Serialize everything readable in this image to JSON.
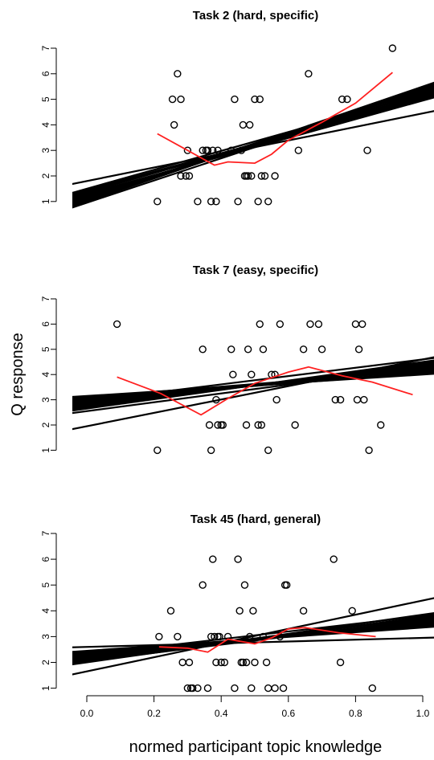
{
  "ylabel": "Q response",
  "xlabel": "normed participant topic knowledge",
  "chart_data": [
    {
      "type": "scatter",
      "title": "Task 2 (hard, specific)",
      "xlim": [
        0,
        1
      ],
      "ylim": [
        1,
        7
      ],
      "yticks": [
        1,
        2,
        3,
        4,
        5,
        6,
        7
      ],
      "points": [
        [
          0.21,
          1
        ],
        [
          0.255,
          5
        ],
        [
          0.26,
          4
        ],
        [
          0.27,
          6
        ],
        [
          0.28,
          5
        ],
        [
          0.28,
          2
        ],
        [
          0.295,
          2
        ],
        [
          0.3,
          3
        ],
        [
          0.305,
          2
        ],
        [
          0.33,
          1
        ],
        [
          0.345,
          3
        ],
        [
          0.355,
          3
        ],
        [
          0.36,
          3
        ],
        [
          0.37,
          1
        ],
        [
          0.375,
          3
        ],
        [
          0.385,
          1
        ],
        [
          0.39,
          3
        ],
        [
          0.43,
          3
        ],
        [
          0.44,
          5
        ],
        [
          0.45,
          1
        ],
        [
          0.46,
          3
        ],
        [
          0.465,
          4
        ],
        [
          0.47,
          2
        ],
        [
          0.475,
          2
        ],
        [
          0.48,
          2
        ],
        [
          0.485,
          4
        ],
        [
          0.49,
          2
        ],
        [
          0.5,
          5
        ],
        [
          0.51,
          1
        ],
        [
          0.515,
          5
        ],
        [
          0.52,
          2
        ],
        [
          0.53,
          2
        ],
        [
          0.54,
          1
        ],
        [
          0.56,
          2
        ],
        [
          0.63,
          3
        ],
        [
          0.66,
          6
        ],
        [
          0.76,
          5
        ],
        [
          0.775,
          5
        ],
        [
          0.835,
          3
        ],
        [
          0.91,
          7
        ]
      ],
      "lines": [
        [
          [
            0,
            1.35
          ],
          [
            1,
            5.15
          ]
        ],
        [
          [
            0,
            1.2
          ],
          [
            1,
            5.25
          ]
        ],
        [
          [
            0,
            1.1
          ],
          [
            1,
            5.35
          ]
        ],
        [
          [
            0,
            1.25
          ],
          [
            1,
            5.1
          ]
        ],
        [
          [
            0,
            1.4
          ],
          [
            1,
            5.0
          ]
        ],
        [
          [
            0,
            1.05
          ],
          [
            1,
            5.45
          ]
        ],
        [
          [
            0,
            1.3
          ],
          [
            1,
            4.95
          ]
        ],
        [
          [
            0,
            1.45
          ],
          [
            1,
            5.05
          ]
        ],
        [
          [
            0,
            1.15
          ],
          [
            1,
            5.4
          ]
        ],
        [
          [
            0,
            0.95
          ],
          [
            1,
            5.3
          ]
        ],
        [
          [
            0,
            1.5
          ],
          [
            1,
            5.2
          ]
        ],
        [
          [
            0,
            1.0
          ],
          [
            1,
            5.5
          ]
        ],
        [
          [
            0,
            1.8
          ],
          [
            1,
            4.45
          ]
        ]
      ],
      "smooth": [
        [
          0.21,
          3.65
        ],
        [
          0.3,
          3.0
        ],
        [
          0.38,
          2.42
        ],
        [
          0.42,
          2.55
        ],
        [
          0.5,
          2.5
        ],
        [
          0.55,
          2.85
        ],
        [
          0.6,
          3.4
        ],
        [
          0.7,
          4.1
        ],
        [
          0.8,
          4.85
        ],
        [
          0.91,
          6.05
        ]
      ]
    },
    {
      "type": "scatter",
      "title": "Task 7 (easy, specific)",
      "xlim": [
        0,
        1
      ],
      "ylim": [
        1,
        7
      ],
      "yticks": [
        1,
        2,
        3,
        4,
        5,
        6,
        7
      ],
      "points": [
        [
          0.09,
          6
        ],
        [
          0.21,
          1
        ],
        [
          0.345,
          5
        ],
        [
          0.365,
          2
        ],
        [
          0.37,
          1
        ],
        [
          0.385,
          3
        ],
        [
          0.39,
          2
        ],
        [
          0.4,
          2
        ],
        [
          0.405,
          2
        ],
        [
          0.43,
          5
        ],
        [
          0.435,
          4
        ],
        [
          0.475,
          2
        ],
        [
          0.48,
          5
        ],
        [
          0.49,
          4
        ],
        [
          0.51,
          2
        ],
        [
          0.515,
          6
        ],
        [
          0.52,
          2
        ],
        [
          0.525,
          5
        ],
        [
          0.54,
          1
        ],
        [
          0.55,
          4
        ],
        [
          0.56,
          4
        ],
        [
          0.565,
          3
        ],
        [
          0.575,
          6
        ],
        [
          0.62,
          2
        ],
        [
          0.645,
          5
        ],
        [
          0.665,
          6
        ],
        [
          0.69,
          6
        ],
        [
          0.7,
          5
        ],
        [
          0.74,
          3
        ],
        [
          0.755,
          3
        ],
        [
          0.8,
          6
        ],
        [
          0.805,
          3
        ],
        [
          0.81,
          5
        ],
        [
          0.82,
          6
        ],
        [
          0.825,
          3
        ],
        [
          0.84,
          1
        ],
        [
          0.875,
          2
        ]
      ],
      "lines": [
        [
          [
            0,
            2.85
          ],
          [
            1,
            4.3
          ]
        ],
        [
          [
            0,
            2.95
          ],
          [
            1,
            4.2
          ]
        ],
        [
          [
            0,
            3.0
          ],
          [
            1,
            4.1
          ]
        ],
        [
          [
            0,
            2.8
          ],
          [
            1,
            4.35
          ]
        ],
        [
          [
            0,
            2.9
          ],
          [
            1,
            4.25
          ]
        ],
        [
          [
            0,
            3.05
          ],
          [
            1,
            4.05
          ]
        ],
        [
          [
            0,
            2.75
          ],
          [
            1,
            4.4
          ]
        ],
        [
          [
            0,
            2.65
          ],
          [
            1,
            4.5
          ]
        ],
        [
          [
            0,
            3.1
          ],
          [
            1,
            4.15
          ]
        ],
        [
          [
            0,
            2.55
          ],
          [
            1,
            4.3
          ]
        ],
        [
          [
            0,
            2.7
          ],
          [
            1,
            4.45
          ]
        ],
        [
          [
            0,
            3.15
          ],
          [
            1,
            4.0
          ]
        ],
        [
          [
            0,
            2.95
          ],
          [
            1,
            4.6
          ]
        ],
        [
          [
            0,
            1.95
          ],
          [
            1,
            4.6
          ]
        ]
      ],
      "smooth": [
        [
          0.09,
          3.9
        ],
        [
          0.22,
          3.25
        ],
        [
          0.34,
          2.4
        ],
        [
          0.42,
          3.05
        ],
        [
          0.5,
          3.65
        ],
        [
          0.6,
          4.1
        ],
        [
          0.66,
          4.3
        ],
        [
          0.76,
          3.95
        ],
        [
          0.85,
          3.7
        ],
        [
          0.97,
          3.2
        ]
      ]
    },
    {
      "type": "scatter",
      "title": "Task 45 (hard, general)",
      "xlim": [
        0,
        1
      ],
      "ylim": [
        1,
        7
      ],
      "yticks": [
        1,
        2,
        3,
        4,
        5,
        6,
        7
      ],
      "xticks": [
        0.0,
        0.2,
        0.4,
        0.6,
        0.8,
        1.0
      ],
      "xticklabels": [
        "0.0",
        "0.2",
        "0.4",
        "0.6",
        "0.8",
        "1.0"
      ],
      "points": [
        [
          0.215,
          3
        ],
        [
          0.25,
          4
        ],
        [
          0.27,
          3
        ],
        [
          0.285,
          2
        ],
        [
          0.3,
          1
        ],
        [
          0.305,
          2
        ],
        [
          0.31,
          1
        ],
        [
          0.315,
          1
        ],
        [
          0.33,
          1
        ],
        [
          0.345,
          5
        ],
        [
          0.36,
          1
        ],
        [
          0.37,
          3
        ],
        [
          0.375,
          6
        ],
        [
          0.38,
          3
        ],
        [
          0.385,
          2
        ],
        [
          0.39,
          3
        ],
        [
          0.395,
          3
        ],
        [
          0.4,
          2
        ],
        [
          0.41,
          2
        ],
        [
          0.42,
          3
        ],
        [
          0.44,
          1
        ],
        [
          0.45,
          6
        ],
        [
          0.455,
          4
        ],
        [
          0.46,
          2
        ],
        [
          0.465,
          2
        ],
        [
          0.47,
          5
        ],
        [
          0.475,
          2
        ],
        [
          0.485,
          3
        ],
        [
          0.49,
          1
        ],
        [
          0.495,
          4
        ],
        [
          0.5,
          2
        ],
        [
          0.525,
          3
        ],
        [
          0.535,
          2
        ],
        [
          0.54,
          1
        ],
        [
          0.56,
          1
        ],
        [
          0.575,
          3
        ],
        [
          0.585,
          1
        ],
        [
          0.59,
          5
        ],
        [
          0.595,
          5
        ],
        [
          0.645,
          4
        ],
        [
          0.735,
          6
        ],
        [
          0.755,
          2
        ],
        [
          0.79,
          4
        ],
        [
          0.85,
          1
        ]
      ],
      "lines": [
        [
          [
            0,
            2.3
          ],
          [
            1,
            3.5
          ]
        ],
        [
          [
            0,
            2.2
          ],
          [
            1,
            3.6
          ]
        ],
        [
          [
            0,
            2.35
          ],
          [
            1,
            3.45
          ]
        ],
        [
          [
            0,
            2.15
          ],
          [
            1,
            3.7
          ]
        ],
        [
          [
            0,
            2.25
          ],
          [
            1,
            3.55
          ]
        ],
        [
          [
            0,
            2.1
          ],
          [
            1,
            3.75
          ]
        ],
        [
          [
            0,
            2.4
          ],
          [
            1,
            3.4
          ]
        ],
        [
          [
            0,
            2.05
          ],
          [
            1,
            3.65
          ]
        ],
        [
          [
            0,
            2.3
          ],
          [
            1,
            3.8
          ]
        ],
        [
          [
            0,
            2.45
          ],
          [
            1,
            3.35
          ]
        ],
        [
          [
            0,
            2.6
          ],
          [
            1,
            2.95
          ]
        ],
        [
          [
            0,
            1.65
          ],
          [
            1,
            4.4
          ]
        ],
        [
          [
            0,
            2.0
          ],
          [
            1,
            3.85
          ]
        ]
      ],
      "smooth": [
        [
          0.215,
          2.6
        ],
        [
          0.3,
          2.55
        ],
        [
          0.36,
          2.4
        ],
        [
          0.42,
          2.9
        ],
        [
          0.5,
          2.72
        ],
        [
          0.55,
          2.95
        ],
        [
          0.6,
          3.3
        ],
        [
          0.65,
          3.35
        ],
        [
          0.75,
          3.15
        ],
        [
          0.86,
          3.0
        ]
      ]
    }
  ]
}
